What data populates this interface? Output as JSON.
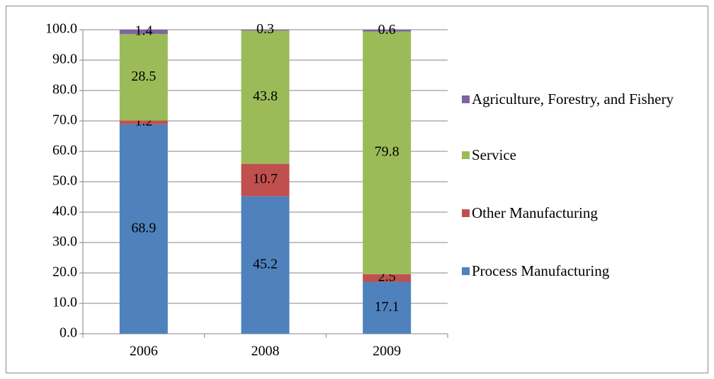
{
  "chart_data": {
    "type": "stacked_bar",
    "categories": [
      "2006",
      "2008",
      "2009"
    ],
    "series": [
      {
        "name": "Process Manufacturing",
        "color": "#4f81bd",
        "values": [
          68.9,
          45.2,
          17.1
        ]
      },
      {
        "name": "Other Manufacturing",
        "color": "#c0504d",
        "values": [
          1.2,
          10.7,
          2.5
        ]
      },
      {
        "name": "Service",
        "color": "#9bbb59",
        "values": [
          28.5,
          43.8,
          79.8
        ]
      },
      {
        "name": "Agriculture, Forestry, and Fishery",
        "color": "#8064a2",
        "values": [
          1.4,
          0.3,
          0.6
        ]
      }
    ],
    "ylim": [
      0,
      100
    ],
    "yticks": [
      {
        "value": 0,
        "label": "0.0"
      },
      {
        "value": 10,
        "label": "10.0"
      },
      {
        "value": 20,
        "label": "20.0"
      },
      {
        "value": 30,
        "label": "30.0"
      },
      {
        "value": 40,
        "label": "40.0"
      },
      {
        "value": 50,
        "label": "50.0"
      },
      {
        "value": 60,
        "label": "60.0"
      },
      {
        "value": 70,
        "label": "70.0"
      },
      {
        "value": 80,
        "label": "80.0"
      },
      {
        "value": 90,
        "label": "90.0"
      },
      {
        "value": 100,
        "label": "100.0"
      }
    ],
    "grid": true,
    "legend": "right"
  }
}
